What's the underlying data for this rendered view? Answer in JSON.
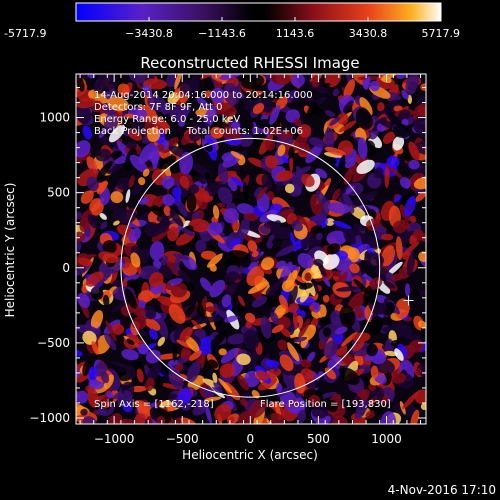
{
  "colorbar": {
    "ticks": [
      "-5717.9",
      "−3430.8",
      "−1143.6",
      "1143.6",
      "3430.8",
      "5717.9"
    ],
    "tick_values": [
      -5717.9,
      -3430.8,
      -1143.6,
      1143.6,
      3430.8,
      5717.9
    ],
    "range": [
      -5717.9,
      5717.9
    ],
    "colormap": [
      "#0000ff",
      "#6a1fbf",
      "#2a0a3a",
      "#000000",
      "#8b0e1a",
      "#e8401a",
      "#ffb020",
      "#ffffff"
    ]
  },
  "plot": {
    "title": "Reconstructed RHESSI Image",
    "info_lines": [
      "14-Aug-2014 20:04:16.000 to 20:14:16.000",
      "Detectors: 7F 8F 9F, Att 0",
      "Energy Range: 6.0 - 25.0 keV",
      "Back Projection     Total counts: 1.02E+06"
    ],
    "spin_axis": "Spin Axis = [1162,-218]",
    "flare_position": "Flare Position = [193,830]",
    "xlabel": "Heliocentric X (arcsec)",
    "ylabel": "Heliocentric Y (arcsec)",
    "x_range": [
      -1280,
      1290
    ],
    "y_range": [
      -1040,
      1290
    ],
    "x_ticks": [
      -1000,
      -500,
      0,
      500,
      1000
    ],
    "x_tick_labels": [
      "−1000",
      "−500",
      "0",
      "500",
      "1000"
    ],
    "y_ticks": [
      1000,
      500,
      0,
      -500,
      -1000
    ],
    "y_tick_labels": [
      "1000",
      "500",
      "0",
      "−500",
      "−1000"
    ],
    "solar_limb_radius_arcsec": 950,
    "crosshair_marker_position": [
      1162,
      -218
    ]
  },
  "footer": {
    "timestamp": "4-Nov-2016 17:10"
  }
}
